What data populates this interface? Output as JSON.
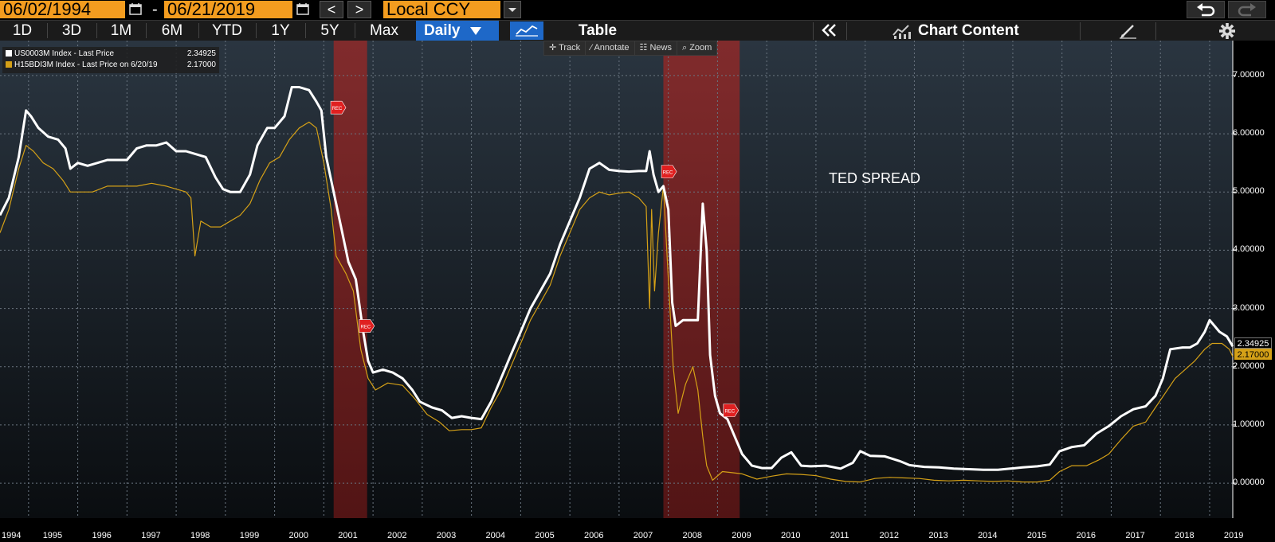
{
  "toolbar": {
    "start_date": "06/02/1994",
    "end_date": "06/21/2019",
    "date_separator": "-",
    "prev_label": "<",
    "next_label": ">",
    "currency": "Local CCY"
  },
  "ranges": [
    "1D",
    "3D",
    "1M",
    "6M",
    "YTD",
    "1Y",
    "5Y",
    "Max"
  ],
  "frequency": "Daily",
  "table_label": "Table",
  "chart_content_label": "Chart Content",
  "tools": [
    "Track",
    "Annotate",
    "News",
    "Zoom"
  ],
  "legend": [
    {
      "label": "US0003M Index - Last Price",
      "value": "2.34925",
      "color": "#ffffff"
    },
    {
      "label": "H15BDI3M Index - Last Price on 6/20/19",
      "value": "2.17000",
      "color": "#d4a017"
    }
  ],
  "annotation": "TED SPREAD",
  "recession_marker": "REC",
  "colors": {
    "accent": "#f39c1f",
    "selected": "#1e68c8",
    "recession": "#7a1f1f",
    "series2": "#d4a017"
  },
  "chart_data": {
    "type": "line",
    "x_label": "",
    "y_label": "",
    "y_ticks": [
      "0.00000",
      "1.00000",
      "2.00000",
      "3.00000",
      "4.00000",
      "5.00000",
      "6.00000",
      "7.00000"
    ],
    "ylim": [
      -0.6,
      7.6
    ],
    "xlim": [
      1994.42,
      2019.47
    ],
    "x_ticks": [
      "1994",
      "1995",
      "1996",
      "1997",
      "1998",
      "1999",
      "2000",
      "2001",
      "2002",
      "2003",
      "2004",
      "2005",
      "2006",
      "2007",
      "2008",
      "2009",
      "2010",
      "2011",
      "2012",
      "2013",
      "2014",
      "2015",
      "2016",
      "2017",
      "2018",
      "2019"
    ],
    "recessions": [
      [
        2001.2,
        2001.88
      ],
      [
        2007.9,
        2009.45
      ]
    ],
    "last_values": {
      "US0003M": "2.34925",
      "H15BDI3M": "2.17000"
    },
    "series": [
      {
        "name": "US0003M Index - Last Price",
        "color": "#ffffff",
        "points": [
          [
            1994.42,
            4.6
          ],
          [
            1994.6,
            4.9
          ],
          [
            1994.8,
            5.6
          ],
          [
            1994.95,
            6.4
          ],
          [
            1995.05,
            6.3
          ],
          [
            1995.2,
            6.1
          ],
          [
            1995.4,
            5.95
          ],
          [
            1995.6,
            5.9
          ],
          [
            1995.75,
            5.75
          ],
          [
            1995.85,
            5.4
          ],
          [
            1996.0,
            5.5
          ],
          [
            1996.2,
            5.45
          ],
          [
            1996.4,
            5.5
          ],
          [
            1996.6,
            5.55
          ],
          [
            1996.8,
            5.55
          ],
          [
            1997.0,
            5.55
          ],
          [
            1997.2,
            5.75
          ],
          [
            1997.4,
            5.8
          ],
          [
            1997.6,
            5.8
          ],
          [
            1997.8,
            5.85
          ],
          [
            1998.0,
            5.7
          ],
          [
            1998.2,
            5.7
          ],
          [
            1998.4,
            5.65
          ],
          [
            1998.6,
            5.6
          ],
          [
            1998.8,
            5.25
          ],
          [
            1998.95,
            5.05
          ],
          [
            1999.1,
            5.0
          ],
          [
            1999.3,
            5.0
          ],
          [
            1999.5,
            5.3
          ],
          [
            1999.65,
            5.8
          ],
          [
            1999.85,
            6.1
          ],
          [
            2000.0,
            6.1
          ],
          [
            2000.2,
            6.3
          ],
          [
            2000.35,
            6.8
          ],
          [
            2000.5,
            6.8
          ],
          [
            2000.7,
            6.75
          ],
          [
            2000.85,
            6.55
          ],
          [
            2000.95,
            6.4
          ],
          [
            2001.05,
            5.6
          ],
          [
            2001.2,
            5.0
          ],
          [
            2001.35,
            4.4
          ],
          [
            2001.5,
            3.8
          ],
          [
            2001.65,
            3.5
          ],
          [
            2001.8,
            2.6
          ],
          [
            2001.9,
            2.1
          ],
          [
            2002.0,
            1.9
          ],
          [
            2002.2,
            1.95
          ],
          [
            2002.4,
            1.9
          ],
          [
            2002.6,
            1.8
          ],
          [
            2002.8,
            1.6
          ],
          [
            2002.95,
            1.4
          ],
          [
            2003.2,
            1.3
          ],
          [
            2003.4,
            1.25
          ],
          [
            2003.6,
            1.12
          ],
          [
            2003.8,
            1.15
          ],
          [
            2004.0,
            1.12
          ],
          [
            2004.2,
            1.1
          ],
          [
            2004.4,
            1.4
          ],
          [
            2004.6,
            1.8
          ],
          [
            2004.8,
            2.2
          ],
          [
            2005.0,
            2.6
          ],
          [
            2005.2,
            3.0
          ],
          [
            2005.4,
            3.3
          ],
          [
            2005.6,
            3.6
          ],
          [
            2005.8,
            4.1
          ],
          [
            2006.0,
            4.5
          ],
          [
            2006.2,
            4.9
          ],
          [
            2006.4,
            5.4
          ],
          [
            2006.6,
            5.5
          ],
          [
            2006.8,
            5.38
          ],
          [
            2007.0,
            5.36
          ],
          [
            2007.2,
            5.35
          ],
          [
            2007.4,
            5.36
          ],
          [
            2007.55,
            5.36
          ],
          [
            2007.62,
            5.7
          ],
          [
            2007.7,
            5.3
          ],
          [
            2007.8,
            5.0
          ],
          [
            2007.9,
            5.1
          ],
          [
            2008.0,
            4.7
          ],
          [
            2008.08,
            3.1
          ],
          [
            2008.15,
            2.7
          ],
          [
            2008.3,
            2.8
          ],
          [
            2008.45,
            2.8
          ],
          [
            2008.6,
            2.8
          ],
          [
            2008.7,
            4.8
          ],
          [
            2008.78,
            4.0
          ],
          [
            2008.85,
            2.2
          ],
          [
            2008.95,
            1.5
          ],
          [
            2009.05,
            1.2
          ],
          [
            2009.2,
            1.1
          ],
          [
            2009.35,
            0.8
          ],
          [
            2009.5,
            0.5
          ],
          [
            2009.7,
            0.3
          ],
          [
            2009.9,
            0.26
          ],
          [
            2010.1,
            0.26
          ],
          [
            2010.3,
            0.44
          ],
          [
            2010.5,
            0.53
          ],
          [
            2010.7,
            0.3
          ],
          [
            2010.9,
            0.29
          ],
          [
            2011.2,
            0.3
          ],
          [
            2011.5,
            0.25
          ],
          [
            2011.75,
            0.35
          ],
          [
            2011.9,
            0.55
          ],
          [
            2012.1,
            0.47
          ],
          [
            2012.4,
            0.46
          ],
          [
            2012.7,
            0.38
          ],
          [
            2012.9,
            0.31
          ],
          [
            2013.2,
            0.28
          ],
          [
            2013.5,
            0.27
          ],
          [
            2013.8,
            0.25
          ],
          [
            2014.1,
            0.24
          ],
          [
            2014.4,
            0.23
          ],
          [
            2014.7,
            0.23
          ],
          [
            2014.95,
            0.25
          ],
          [
            2015.2,
            0.27
          ],
          [
            2015.5,
            0.29
          ],
          [
            2015.75,
            0.32
          ],
          [
            2015.95,
            0.55
          ],
          [
            2016.2,
            0.62
          ],
          [
            2016.45,
            0.65
          ],
          [
            2016.7,
            0.85
          ],
          [
            2016.95,
            0.98
          ],
          [
            2017.2,
            1.15
          ],
          [
            2017.45,
            1.27
          ],
          [
            2017.7,
            1.32
          ],
          [
            2017.9,
            1.5
          ],
          [
            2018.05,
            1.8
          ],
          [
            2018.2,
            2.3
          ],
          [
            2018.45,
            2.33
          ],
          [
            2018.6,
            2.33
          ],
          [
            2018.75,
            2.4
          ],
          [
            2018.9,
            2.6
          ],
          [
            2019.0,
            2.8
          ],
          [
            2019.2,
            2.6
          ],
          [
            2019.35,
            2.52
          ],
          [
            2019.47,
            2.34925
          ]
        ]
      },
      {
        "name": "H15BDI3M Index - Last Price on 6/20/19",
        "color": "#d4a017",
        "points": [
          [
            1994.42,
            4.3
          ],
          [
            1994.6,
            4.7
          ],
          [
            1994.8,
            5.4
          ],
          [
            1994.95,
            5.8
          ],
          [
            1995.1,
            5.7
          ],
          [
            1995.3,
            5.5
          ],
          [
            1995.5,
            5.4
          ],
          [
            1995.7,
            5.2
          ],
          [
            1995.85,
            5.0
          ],
          [
            1996.0,
            5.0
          ],
          [
            1996.3,
            5.0
          ],
          [
            1996.6,
            5.1
          ],
          [
            1996.9,
            5.1
          ],
          [
            1997.2,
            5.1
          ],
          [
            1997.5,
            5.15
          ],
          [
            1997.8,
            5.1
          ],
          [
            1998.0,
            5.05
          ],
          [
            1998.2,
            5.0
          ],
          [
            1998.3,
            4.9
          ],
          [
            1998.38,
            3.9
          ],
          [
            1998.5,
            4.5
          ],
          [
            1998.7,
            4.4
          ],
          [
            1998.9,
            4.4
          ],
          [
            1999.1,
            4.5
          ],
          [
            1999.3,
            4.6
          ],
          [
            1999.5,
            4.8
          ],
          [
            1999.7,
            5.2
          ],
          [
            1999.9,
            5.5
          ],
          [
            2000.1,
            5.6
          ],
          [
            2000.3,
            5.9
          ],
          [
            2000.5,
            6.1
          ],
          [
            2000.7,
            6.2
          ],
          [
            2000.85,
            6.1
          ],
          [
            2001.0,
            5.5
          ],
          [
            2001.15,
            4.7
          ],
          [
            2001.25,
            3.9
          ],
          [
            2001.45,
            3.6
          ],
          [
            2001.6,
            3.3
          ],
          [
            2001.75,
            2.3
          ],
          [
            2001.9,
            1.8
          ],
          [
            2002.05,
            1.6
          ],
          [
            2002.3,
            1.72
          ],
          [
            2002.6,
            1.68
          ],
          [
            2002.85,
            1.45
          ],
          [
            2003.1,
            1.18
          ],
          [
            2003.35,
            1.05
          ],
          [
            2003.55,
            0.9
          ],
          [
            2003.8,
            0.92
          ],
          [
            2004.0,
            0.92
          ],
          [
            2004.2,
            0.95
          ],
          [
            2004.4,
            1.3
          ],
          [
            2004.6,
            1.6
          ],
          [
            2004.8,
            2.0
          ],
          [
            2005.0,
            2.4
          ],
          [
            2005.2,
            2.8
          ],
          [
            2005.4,
            3.1
          ],
          [
            2005.6,
            3.4
          ],
          [
            2005.8,
            3.9
          ],
          [
            2006.0,
            4.3
          ],
          [
            2006.2,
            4.7
          ],
          [
            2006.4,
            4.9
          ],
          [
            2006.6,
            5.0
          ],
          [
            2006.8,
            4.95
          ],
          [
            2007.0,
            4.98
          ],
          [
            2007.2,
            5.0
          ],
          [
            2007.4,
            4.9
          ],
          [
            2007.55,
            4.75
          ],
          [
            2007.62,
            3.0
          ],
          [
            2007.66,
            4.7
          ],
          [
            2007.72,
            3.3
          ],
          [
            2007.8,
            4.3
          ],
          [
            2007.9,
            5.1
          ],
          [
            2008.0,
            3.5
          ],
          [
            2008.1,
            2.0
          ],
          [
            2008.2,
            1.2
          ],
          [
            2008.35,
            1.7
          ],
          [
            2008.5,
            2.0
          ],
          [
            2008.6,
            1.6
          ],
          [
            2008.7,
            0.8
          ],
          [
            2008.78,
            0.3
          ],
          [
            2008.9,
            0.05
          ],
          [
            2009.1,
            0.2
          ],
          [
            2009.3,
            0.18
          ],
          [
            2009.5,
            0.16
          ],
          [
            2009.8,
            0.07
          ],
          [
            2010.1,
            0.12
          ],
          [
            2010.4,
            0.16
          ],
          [
            2010.7,
            0.15
          ],
          [
            2011.0,
            0.13
          ],
          [
            2011.3,
            0.07
          ],
          [
            2011.6,
            0.03
          ],
          [
            2011.9,
            0.02
          ],
          [
            2012.2,
            0.08
          ],
          [
            2012.5,
            0.1
          ],
          [
            2012.8,
            0.09
          ],
          [
            2013.1,
            0.08
          ],
          [
            2013.4,
            0.05
          ],
          [
            2013.7,
            0.04
          ],
          [
            2014.0,
            0.05
          ],
          [
            2014.3,
            0.04
          ],
          [
            2014.6,
            0.03
          ],
          [
            2014.9,
            0.04
          ],
          [
            2015.2,
            0.02
          ],
          [
            2015.5,
            0.02
          ],
          [
            2015.75,
            0.05
          ],
          [
            2015.95,
            0.2
          ],
          [
            2016.2,
            0.3
          ],
          [
            2016.5,
            0.3
          ],
          [
            2016.75,
            0.4
          ],
          [
            2016.95,
            0.5
          ],
          [
            2017.2,
            0.75
          ],
          [
            2017.45,
            0.98
          ],
          [
            2017.7,
            1.05
          ],
          [
            2017.9,
            1.3
          ],
          [
            2018.1,
            1.55
          ],
          [
            2018.3,
            1.8
          ],
          [
            2018.5,
            1.95
          ],
          [
            2018.7,
            2.1
          ],
          [
            2018.9,
            2.3
          ],
          [
            2019.05,
            2.4
          ],
          [
            2019.25,
            2.4
          ],
          [
            2019.4,
            2.3
          ],
          [
            2019.47,
            2.17
          ]
        ]
      }
    ]
  }
}
